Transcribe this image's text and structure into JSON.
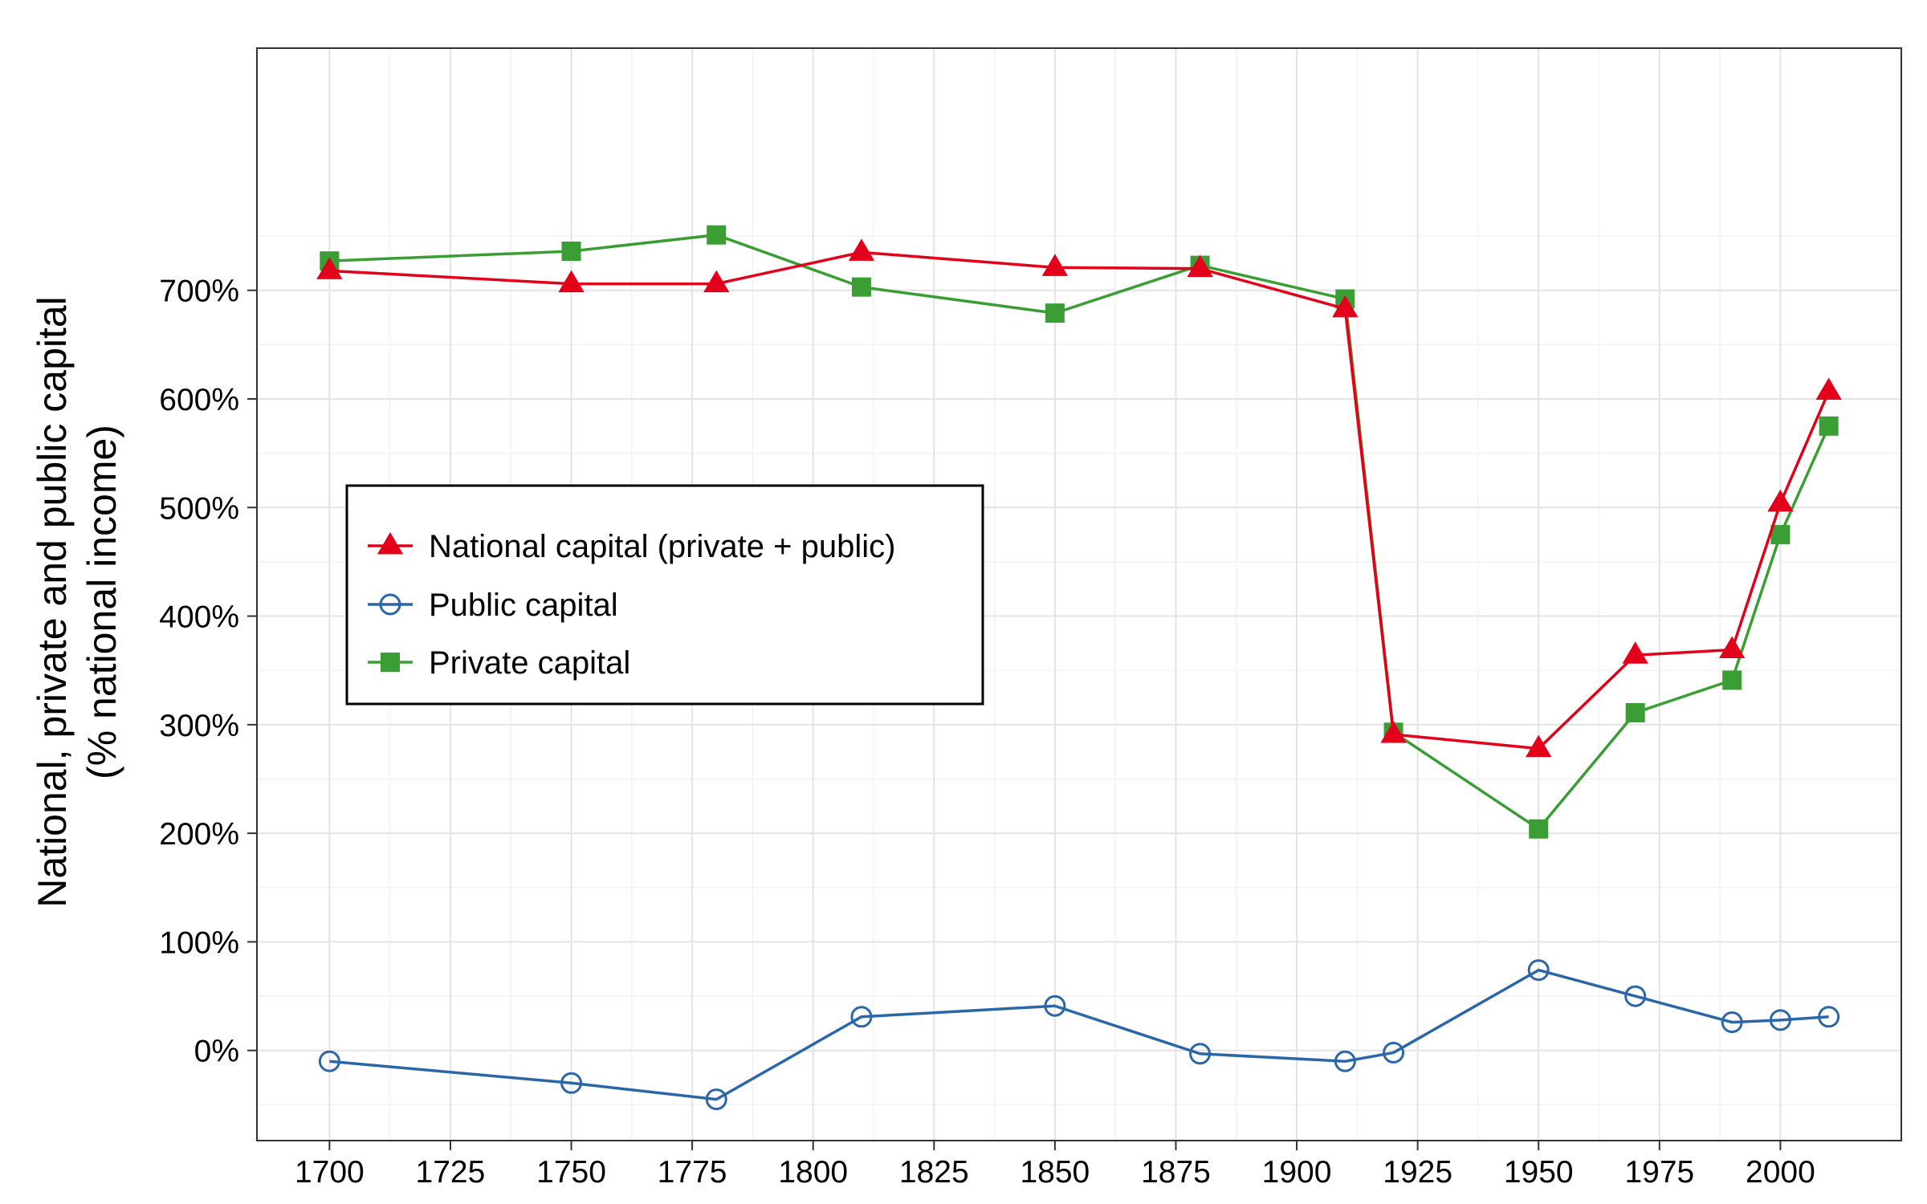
{
  "chart_data": {
    "type": "line",
    "title": "",
    "xlabel": "",
    "ylabel": "National, private and public capital",
    "ylabel_line2": "(% national income)",
    "xlim": [
      1685,
      2025
    ],
    "ylim": [
      -83,
      923
    ],
    "x_ticks": [
      1700,
      1725,
      1750,
      1775,
      1800,
      1825,
      1850,
      1875,
      1900,
      1925,
      1950,
      1975,
      2000
    ],
    "x_tick_labels": [
      "1700",
      "1725",
      "1750",
      "1775",
      "1800",
      "1825",
      "1850",
      "1875",
      "1900",
      "1925",
      "1950",
      "1975",
      "2000"
    ],
    "y_ticks": [
      0,
      100,
      200,
      300,
      400,
      500,
      600,
      700
    ],
    "y_tick_labels": [
      "0%",
      "100%",
      "200%",
      "300%",
      "400%",
      "500%",
      "600%",
      "700%"
    ],
    "grid": true,
    "legend_position": "left-center",
    "series": [
      {
        "name": "National capital (private + public)",
        "color": "#E3001B",
        "marker": "triangle",
        "x": [
          1700,
          1750,
          1780,
          1810,
          1850,
          1880,
          1910,
          1920,
          1950,
          1970,
          1990,
          2000,
          2010
        ],
        "values": [
          718,
          706,
          706,
          735,
          721,
          720,
          683,
          291,
          278,
          364,
          369,
          504,
          607
        ]
      },
      {
        "name": "Public capital",
        "color": "#2B67A8",
        "marker": "open-circle",
        "x": [
          1700,
          1750,
          1780,
          1810,
          1850,
          1880,
          1910,
          1920,
          1950,
          1970,
          1990,
          2000,
          2010
        ],
        "values": [
          -10,
          -30,
          -45,
          31,
          41,
          -3,
          -10,
          -2,
          74,
          50,
          26,
          28,
          31
        ]
      },
      {
        "name": "Private capital",
        "color": "#3A9E35",
        "marker": "square",
        "x": [
          1700,
          1750,
          1780,
          1810,
          1850,
          1880,
          1910,
          1920,
          1950,
          1970,
          1990,
          2000,
          2010
        ],
        "values": [
          727,
          736,
          751,
          703,
          679,
          723,
          692,
          293,
          204,
          311,
          341,
          475,
          575
        ]
      }
    ]
  }
}
